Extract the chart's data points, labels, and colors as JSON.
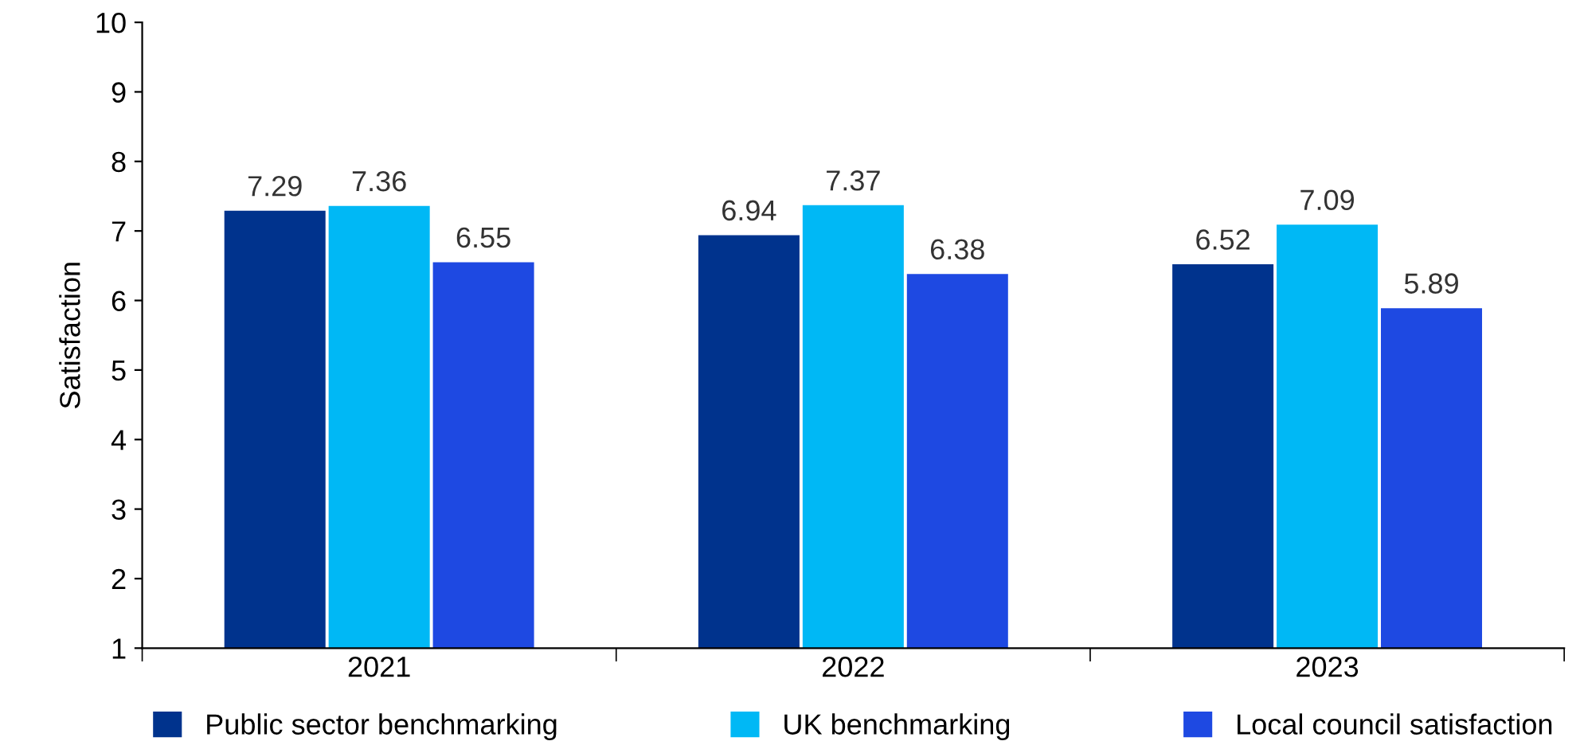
{
  "chart_data": {
    "type": "bar",
    "ylabel": "Satisfaction",
    "categories": [
      "2021",
      "2022",
      "2023"
    ],
    "series": [
      {
        "name": "Public sector benchmarking",
        "color": "#00338d",
        "values": [
          7.29,
          6.94,
          6.52
        ]
      },
      {
        "name": "UK benchmarking",
        "color": "#00b8f5",
        "values": [
          7.36,
          7.37,
          7.09
        ]
      },
      {
        "name": "Local council satisfaction",
        "color": "#1e49e2",
        "values": [
          6.55,
          6.38,
          5.89
        ]
      }
    ],
    "ylim": [
      1,
      10
    ],
    "yticks": [
      1,
      2,
      3,
      4,
      5,
      6,
      7,
      8,
      9,
      10
    ],
    "data_labels": true,
    "grid": false,
    "legend": "bottom"
  }
}
